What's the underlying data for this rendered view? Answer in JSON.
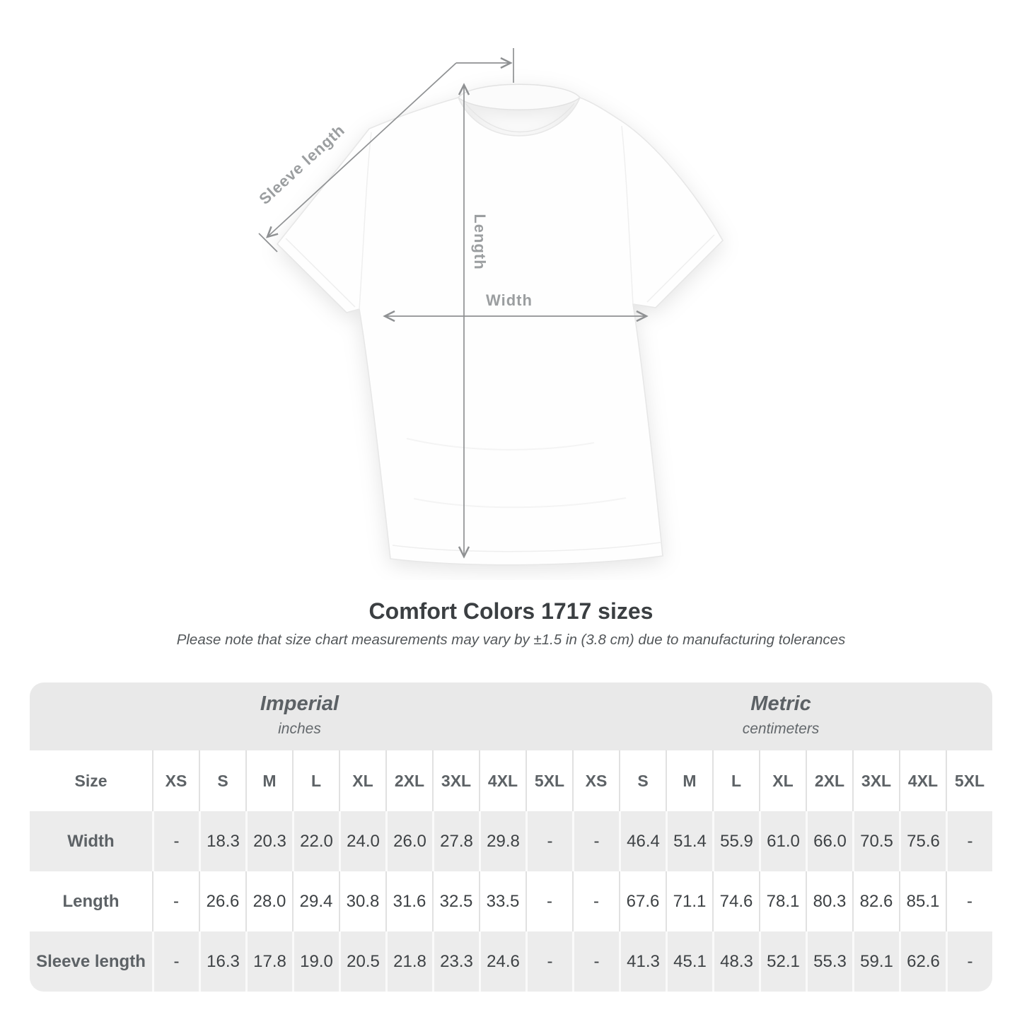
{
  "title": "Comfort Colors 1717 sizes",
  "note": "Please note that size chart measurements may vary by ±1.5 in (3.8 cm) due to manufacturing tolerances",
  "diagram": {
    "sleeve_length_label": "Sleeve length",
    "length_label": "Length",
    "width_label": "Width"
  },
  "colors": {
    "measure_line": "#8f9193",
    "measure_label": "#9b9ea0",
    "band_bg": "#e9e9e9",
    "row_alt_bg": "#ececec",
    "header_text": "#5d6266",
    "value_text": "#3e4245",
    "title_text": "#3b3f42"
  },
  "chart_data": {
    "type": "table",
    "title": "Comfort Colors 1717 sizes",
    "corner_header": "Size",
    "groups": [
      {
        "label": "Imperial",
        "unit": "inches"
      },
      {
        "label": "Metric",
        "unit": "centimeters"
      }
    ],
    "sizes": [
      "XS",
      "S",
      "M",
      "L",
      "XL",
      "2XL",
      "3XL",
      "4XL",
      "5XL"
    ],
    "rows": [
      {
        "label": "Width",
        "imperial": [
          "-",
          "18.3",
          "20.3",
          "22.0",
          "24.0",
          "26.0",
          "27.8",
          "29.8",
          "-"
        ],
        "metric": [
          "-",
          "46.4",
          "51.4",
          "55.9",
          "61.0",
          "66.0",
          "70.5",
          "75.6",
          "-"
        ]
      },
      {
        "label": "Length",
        "imperial": [
          "-",
          "26.6",
          "28.0",
          "29.4",
          "30.8",
          "31.6",
          "32.5",
          "33.5",
          "-"
        ],
        "metric": [
          "-",
          "67.6",
          "71.1",
          "74.6",
          "78.1",
          "80.3",
          "82.6",
          "85.1",
          "-"
        ]
      },
      {
        "label": "Sleeve length",
        "imperial": [
          "-",
          "16.3",
          "17.8",
          "19.0",
          "20.5",
          "21.8",
          "23.3",
          "24.6",
          "-"
        ],
        "metric": [
          "-",
          "41.3",
          "45.1",
          "48.3",
          "52.1",
          "55.3",
          "59.1",
          "62.6",
          "-"
        ]
      }
    ]
  }
}
